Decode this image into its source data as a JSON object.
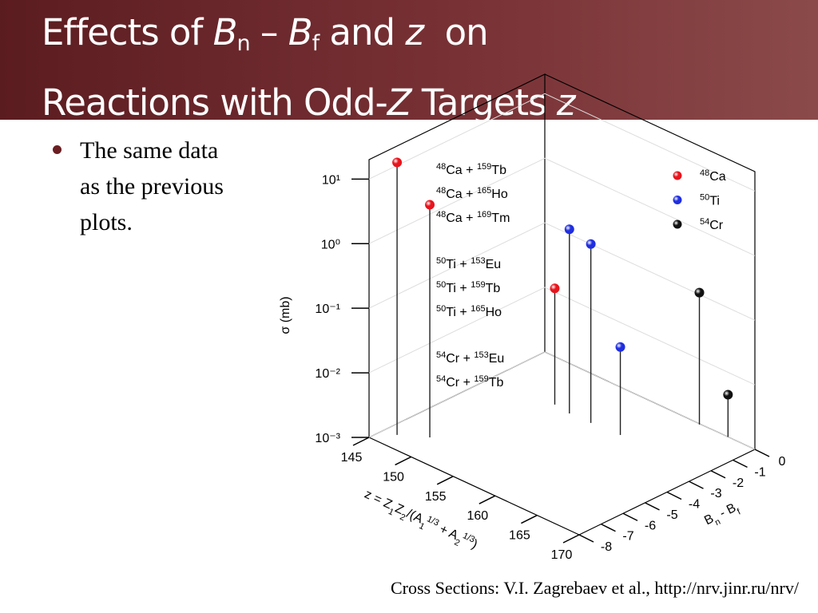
{
  "header": {
    "title": [
      [
        {
          "t": "Effects of "
        },
        {
          "t": "B",
          "s": "i"
        },
        {
          "t": "n",
          "s": "sub"
        },
        {
          "t": " – "
        },
        {
          "t": "B",
          "s": "i"
        },
        {
          "t": "f",
          "s": "sub"
        },
        {
          "t": " and "
        },
        {
          "t": "z",
          "s": "i"
        },
        {
          "t": "  on"
        }
      ],
      [
        {
          "t": "Reactions with Odd-"
        },
        {
          "t": "Z",
          "s": "i"
        },
        {
          "t": " Targets "
        },
        {
          "t": "z",
          "s": "i"
        }
      ]
    ]
  },
  "bullets": [
    "The same data as the previous plots."
  ],
  "footer": "Cross Sections: V.I. Zagrebaev et al., http://nrv.jinr.ru/nrv/",
  "chart_data": {
    "type": "scatter3d",
    "xlabel": [
      {
        "t": "z = Z"
      },
      {
        "t": "1",
        "s": "sub"
      },
      {
        "t": "Z"
      },
      {
        "t": "2",
        "s": "sub"
      },
      {
        "t": "/(A"
      },
      {
        "t": "1",
        "s": "sub"
      },
      {
        "t": "1/3",
        "s": "sup"
      },
      {
        "t": " + A"
      },
      {
        "t": "2",
        "s": "sub"
      },
      {
        "t": "1/3",
        "s": "sup"
      },
      {
        "t": ")"
      }
    ],
    "ylabel": [
      {
        "t": "B"
      },
      {
        "t": "n",
        "s": "sub"
      },
      {
        "t": " - B"
      },
      {
        "t": "f",
        "s": "sub"
      }
    ],
    "zlabel": [
      {
        "t": "σ (mb)"
      }
    ],
    "xlim": [
      145,
      170
    ],
    "xticks": [
      145,
      150,
      155,
      160,
      165,
      170
    ],
    "ylim": [
      -8,
      0
    ],
    "yticks": [
      -8,
      -7,
      -6,
      -5,
      -4,
      -3,
      -2,
      -1,
      0
    ],
    "zlim": [
      0.001,
      20
    ],
    "zscale": "log",
    "zticks": [
      {
        "value": 0.001,
        "label": "10⁻³"
      },
      {
        "value": 0.01,
        "label": "10⁻²"
      },
      {
        "value": 0.1,
        "label": "10⁻¹"
      },
      {
        "value": 1,
        "label": "10⁰"
      },
      {
        "value": 10,
        "label": "10¹"
      }
    ],
    "grid": true,
    "series": [
      {
        "name": [
          {
            "t": "48",
            "s": "sup"
          },
          {
            "t": "Ca"
          }
        ],
        "color": "#e8141c",
        "x": [
          146.4,
          148.7,
          152.2
        ],
        "y": [
          -7.26,
          -6.65,
          -2.3
        ],
        "z": [
          16.6,
          4.0,
          0.063
        ]
      },
      {
        "name": [
          {
            "t": "50",
            "s": "sup"
          },
          {
            "t": "Ti"
          }
        ],
        "color": "#1f2ee0",
        "x": [
          154.2,
          156.7,
          160
        ],
        "y": [
          -2.4,
          -2.38,
          -2.3
        ],
        "z": [
          0.71,
          0.59,
          0.023
        ]
      },
      {
        "name": [
          {
            "t": "54",
            "s": "sup"
          },
          {
            "t": "Cr"
          }
        ],
        "color": "#111111",
        "x": [
          163.5,
          166.8
        ],
        "y": [
          -0.04,
          0
        ],
        "z": [
          0.11,
          0.0045
        ]
      }
    ],
    "annotations": [
      [
        [
          {
            "t": "48",
            "s": "sup"
          },
          {
            "t": "Ca + "
          },
          {
            "t": "159",
            "s": "sup"
          },
          {
            "t": "Tb"
          }
        ],
        [
          {
            "t": "48",
            "s": "sup"
          },
          {
            "t": "Ca + "
          },
          {
            "t": "165",
            "s": "sup"
          },
          {
            "t": "Ho"
          }
        ],
        [
          {
            "t": "48",
            "s": "sup"
          },
          {
            "t": "Ca + "
          },
          {
            "t": "169",
            "s": "sup"
          },
          {
            "t": "Tm"
          }
        ]
      ],
      [
        [
          {
            "t": "50",
            "s": "sup"
          },
          {
            "t": "Ti + "
          },
          {
            "t": "153",
            "s": "sup"
          },
          {
            "t": "Eu"
          }
        ],
        [
          {
            "t": "50",
            "s": "sup"
          },
          {
            "t": "Ti + "
          },
          {
            "t": "159",
            "s": "sup"
          },
          {
            "t": "Tb"
          }
        ],
        [
          {
            "t": "50",
            "s": "sup"
          },
          {
            "t": "Ti + "
          },
          {
            "t": "165",
            "s": "sup"
          },
          {
            "t": "Ho"
          }
        ]
      ],
      [
        [
          {
            "t": "54",
            "s": "sup"
          },
          {
            "t": "Cr + "
          },
          {
            "t": "153",
            "s": "sup"
          },
          {
            "t": "Eu"
          }
        ],
        [
          {
            "t": "54",
            "s": "sup"
          },
          {
            "t": "Cr + "
          },
          {
            "t": "159",
            "s": "sup"
          },
          {
            "t": "Tb"
          }
        ]
      ]
    ]
  }
}
